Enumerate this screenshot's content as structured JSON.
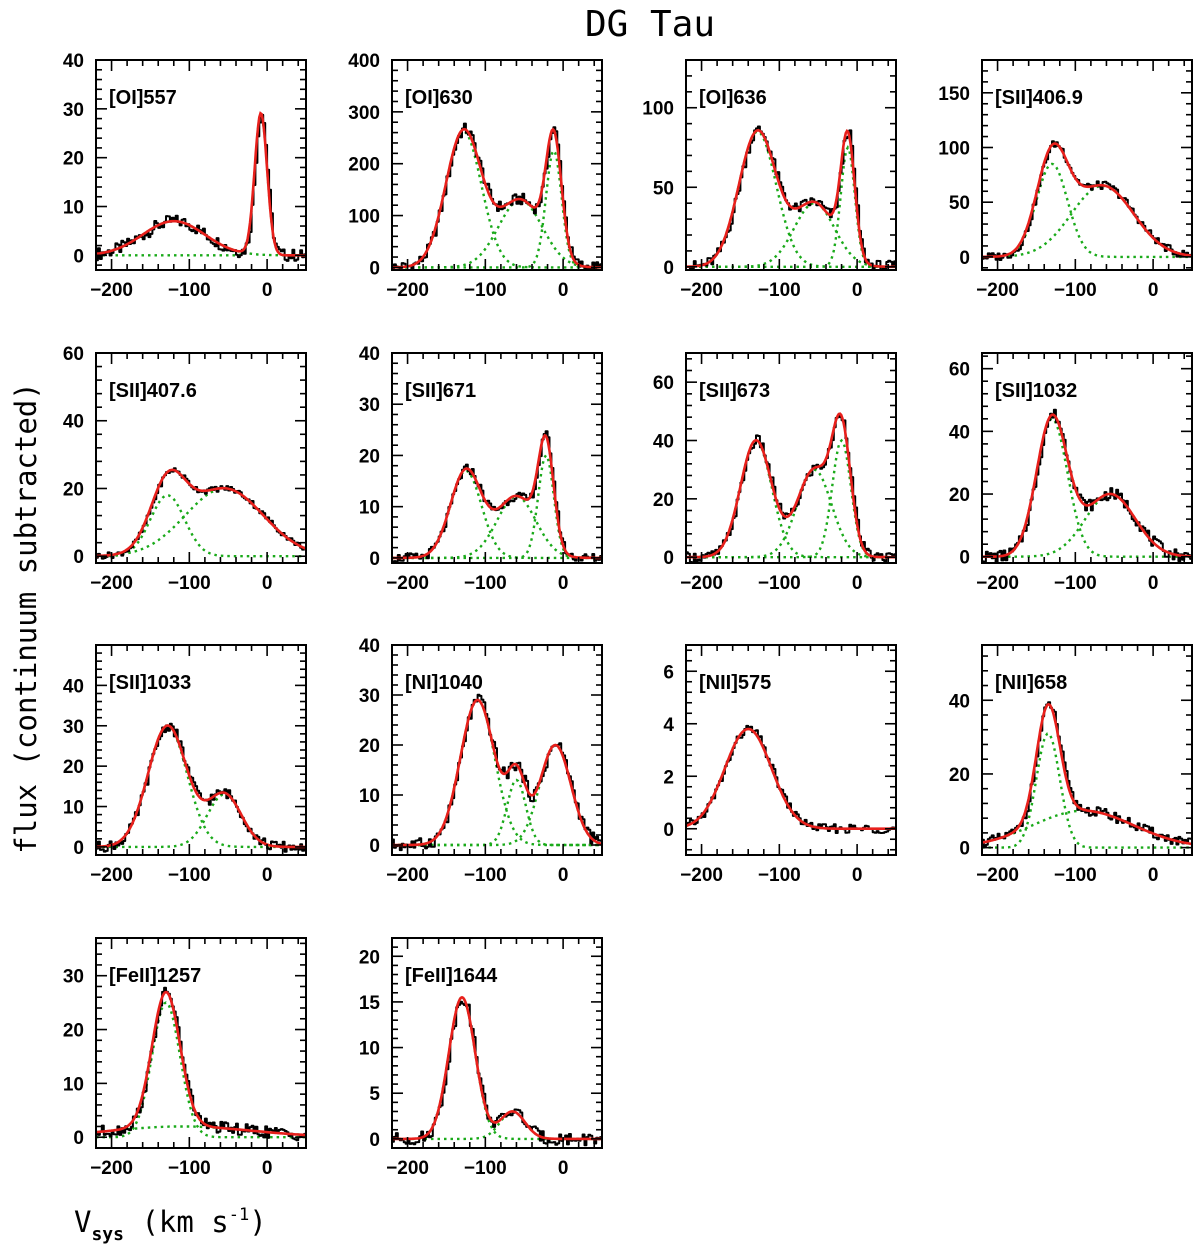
{
  "figure": {
    "title": "DG Tau",
    "ylabel": "flux (continuum subtracted)",
    "xlabel_main": "V",
    "xlabel_sub": "sys",
    "xlabel_units": " (km s",
    "xlabel_sup": "-1",
    "xlabel_close": ")",
    "colors": {
      "observed": "#000000",
      "fit": "#e8201c",
      "components": "#1aaa1a"
    }
  },
  "chart_data": [
    {
      "type": "line",
      "label": "[OI]557",
      "xlim": [
        -220,
        50
      ],
      "ylim": [
        -3,
        40
      ],
      "xticks": [
        -200,
        -100,
        0
      ],
      "yticks": [
        0,
        10,
        20,
        30,
        40
      ],
      "components": [
        [
          7,
          -120,
          40
        ],
        [
          29,
          -8,
          8
        ]
      ]
    },
    {
      "type": "line",
      "label": "[OI]630",
      "xlim": [
        -220,
        50
      ],
      "ylim": [
        -5,
        400
      ],
      "xticks": [
        -200,
        -100,
        0
      ],
      "yticks": [
        0,
        100,
        200,
        300,
        400
      ],
      "components": [
        [
          262,
          -128,
          23
        ],
        [
          130,
          -55,
          28
        ],
        [
          225,
          -12,
          10
        ]
      ]
    },
    {
      "type": "line",
      "label": "[OI]636",
      "xlim": [
        -220,
        50
      ],
      "ylim": [
        -2,
        130
      ],
      "xticks": [
        -200,
        -100,
        0
      ],
      "yticks": [
        0,
        50,
        100
      ],
      "components": [
        [
          85,
          -128,
          24
        ],
        [
          40,
          -55,
          26
        ],
        [
          75,
          -12,
          9
        ]
      ]
    },
    {
      "type": "line",
      "label": "[SII]406.9",
      "xlim": [
        -220,
        50
      ],
      "ylim": [
        -12,
        180
      ],
      "xticks": [
        -200,
        -100,
        0
      ],
      "yticks": [
        0,
        50,
        100,
        150
      ],
      "components": [
        [
          85,
          -130,
          20
        ],
        [
          65,
          -65,
          40
        ]
      ]
    },
    {
      "type": "line",
      "label": "[SII]407.6",
      "xlim": [
        -220,
        50
      ],
      "ylim": [
        -2,
        60
      ],
      "xticks": [
        -200,
        -100,
        0
      ],
      "yticks": [
        0,
        20,
        40,
        60
      ],
      "components": [
        [
          18,
          -128,
          22
        ],
        [
          20,
          -55,
          50
        ]
      ]
    },
    {
      "type": "line",
      "label": "[SII]671",
      "xlim": [
        -220,
        50
      ],
      "ylim": [
        -1,
        40
      ],
      "xticks": [
        -200,
        -100,
        0
      ],
      "yticks": [
        0,
        10,
        20,
        30,
        40
      ],
      "components": [
        [
          17,
          -125,
          20
        ],
        [
          12,
          -60,
          25
        ],
        [
          20,
          -22,
          10
        ]
      ]
    },
    {
      "type": "line",
      "label": "[SII]673",
      "xlim": [
        -220,
        50
      ],
      "ylim": [
        -2,
        70
      ],
      "xticks": [
        -200,
        -100,
        0
      ],
      "yticks": [
        0,
        20,
        40,
        60
      ],
      "components": [
        [
          40,
          -130,
          20
        ],
        [
          30,
          -55,
          22
        ],
        [
          40,
          -20,
          12
        ]
      ]
    },
    {
      "type": "line",
      "label": "[SII]1032",
      "xlim": [
        -220,
        50
      ],
      "ylim": [
        -2,
        65
      ],
      "xticks": [
        -200,
        -100,
        0
      ],
      "yticks": [
        0,
        20,
        40,
        60
      ],
      "components": [
        [
          44,
          -130,
          20
        ],
        [
          20,
          -55,
          32
        ]
      ]
    },
    {
      "type": "line",
      "label": "[SII]1033",
      "xlim": [
        -220,
        50
      ],
      "ylim": [
        -2,
        50
      ],
      "xticks": [
        -200,
        -100,
        0
      ],
      "yticks": [
        0,
        10,
        20,
        30,
        40
      ],
      "components": [
        [
          30,
          -128,
          25
        ],
        [
          13,
          -55,
          22
        ]
      ]
    },
    {
      "type": "line",
      "label": "[NI]1040",
      "xlim": [
        -220,
        50
      ],
      "ylim": [
        -2,
        40
      ],
      "xticks": [
        -200,
        -100,
        0
      ],
      "yticks": [
        0,
        10,
        20,
        30,
        40
      ],
      "components": [
        [
          29,
          -110,
          22
        ],
        [
          13,
          -60,
          12
        ],
        [
          20,
          -10,
          20
        ]
      ]
    },
    {
      "type": "line",
      "label": "[NII]575",
      "xlim": [
        -220,
        50
      ],
      "ylim": [
        -1,
        7
      ],
      "xticks": [
        -200,
        -100,
        0
      ],
      "yticks": [
        0,
        2,
        4,
        6
      ],
      "components": [
        [
          3.8,
          -140,
          30
        ]
      ]
    },
    {
      "type": "line",
      "label": "[NII]658",
      "xlim": [
        -220,
        50
      ],
      "ylim": [
        -2,
        55
      ],
      "xticks": [
        -200,
        -100,
        0
      ],
      "yticks": [
        0,
        20,
        40
      ],
      "components": [
        [
          31,
          -135,
          15
        ],
        [
          10,
          -90,
          65
        ]
      ]
    },
    {
      "type": "line",
      "label": "[FeII]1257",
      "xlim": [
        -220,
        50
      ],
      "ylim": [
        -2,
        37
      ],
      "xticks": [
        -200,
        -100,
        0
      ],
      "yticks": [
        0,
        10,
        20,
        30
      ],
      "components": [
        [
          25,
          -130,
          18
        ],
        [
          2,
          -110,
          90
        ]
      ]
    },
    {
      "type": "line",
      "label": "[FeII]1644",
      "xlim": [
        -220,
        50
      ],
      "ylim": [
        -1,
        22
      ],
      "xticks": [
        -200,
        -100,
        0
      ],
      "yticks": [
        0,
        5,
        10,
        15,
        20
      ],
      "components": [
        [
          15.5,
          -130,
          17
        ],
        [
          3,
          -65,
          16
        ]
      ]
    }
  ]
}
